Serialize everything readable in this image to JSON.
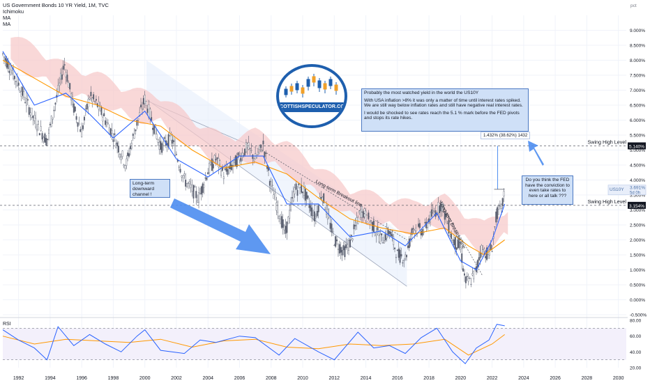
{
  "header": {
    "title": "US Government Bonds 10 YR Yield, 1M, TVC",
    "indicators": [
      "Ichimoku",
      "MA",
      "MA"
    ]
  },
  "annotations": {
    "note_title": "Probably the most watched yield in the world the US10Y",
    "note_p1": "With USA inflation >8% it was only a matter of time until interest rates spiked.  We are still way below inflation rates and still have negative real interest rates.",
    "note_p2": "I would be shocked to see rates reach the 5.1 % mark before the FED pivots and stops its rate hikes.",
    "channel_note": "Long-term downward channel !",
    "question_note": "Do you think the FED have the conviction to even take rates to here or all talk ???",
    "breakout_label": "Long-term Breakout line",
    "breakout_label_2": "Long-term Breakout line",
    "measure": "1.432% (38.62%) 1432",
    "logo_text": "SCOTTISHSPECULATOR.COM",
    "swing_high_1": "Swing High Level",
    "swing_high_2": "Swing High Level",
    "swing_high_1_value": "5.140%",
    "swing_high_2_value": "3.154%"
  },
  "colors": {
    "candle_up": "#26a69a",
    "candle_down": "#ef5350",
    "ma_fast": "#2962ff",
    "ma_slow": "#ff9800",
    "rsi_line": "#2962ff",
    "rsi_ma": "#ff9800",
    "cloud_bear": "#f7c7c7",
    "cloud_bull": "#c8e6c9",
    "note_bg": "#cfe0f7",
    "arrow": "#4c8df0",
    "price_label": "#4a6fa5"
  },
  "chart_data": [
    {
      "type": "line",
      "title": "US Government Bonds 10 YR Yield, 1M, TVC",
      "ylabel": "pct",
      "ylim": [
        -0.5,
        9.5
      ],
      "xlim": [
        1991,
        2030.5
      ],
      "x_ticks": [
        "1992",
        "1994",
        "1996",
        "1998",
        "2000",
        "2002",
        "2004",
        "2006",
        "2008",
        "2010",
        "2012",
        "2014",
        "2016",
        "2018",
        "2020",
        "2022",
        "2024",
        "2026",
        "2028",
        "2030"
      ],
      "y_ticks": [
        "9.000%",
        "8.500%",
        "8.000%",
        "7.500%",
        "7.000%",
        "6.500%",
        "6.000%",
        "5.500%",
        "5.000%",
        "4.500%",
        "4.000%",
        "3.500%",
        "3.000%",
        "2.500%",
        "2.000%",
        "1.500%",
        "1.000%",
        "0.500%",
        "0.000%",
        "-0.500%"
      ],
      "current": {
        "symbol": "US10Y",
        "value": "3.691%",
        "countdown": "5d 0h"
      },
      "swing_levels": [
        5.14,
        3.154
      ],
      "series": [
        {
          "name": "US10Y",
          "x": [
            1991.0,
            1992.0,
            1993.0,
            1993.8,
            1994.9,
            1995.5,
            1996.0,
            1996.5,
            1997.0,
            1998.0,
            1998.8,
            1999.5,
            2000.0,
            2001.0,
            2001.7,
            2002.5,
            2003.4,
            2004.0,
            2004.5,
            2005.0,
            2005.6,
            2006.5,
            2007.0,
            2007.5,
            2008.0,
            2008.9,
            2009.5,
            2010.0,
            2010.8,
            2011.2,
            2012.0,
            2012.6,
            2013.0,
            2013.7,
            2014.3,
            2015.0,
            2015.5,
            2016.0,
            2016.5,
            2017.0,
            2017.7,
            2018.0,
            2018.8,
            2019.5,
            2020.0,
            2020.3,
            2020.6,
            2021.0,
            2021.3,
            2021.8,
            2022.0,
            2022.3,
            2022.6,
            2022.8
          ],
          "y": [
            8.2,
            7.2,
            6.0,
            5.3,
            7.9,
            6.4,
            5.6,
            6.8,
            6.5,
            5.5,
            4.5,
            5.9,
            6.7,
            5.1,
            5.4,
            4.0,
            3.4,
            4.3,
            4.7,
            4.2,
            4.5,
            5.1,
            4.7,
            5.2,
            3.8,
            2.2,
            3.7,
            3.7,
            2.7,
            3.6,
            2.0,
            1.6,
            1.9,
            3.0,
            2.6,
            2.0,
            2.3,
            1.5,
            1.4,
            2.4,
            2.3,
            2.7,
            3.2,
            2.0,
            1.7,
            0.6,
            0.6,
            1.0,
            1.7,
            1.5,
            1.8,
            2.9,
            3.0,
            3.69
          ]
        },
        {
          "name": "MA (fast)",
          "x": [
            1991.0,
            1993.0,
            1995.0,
            1996.5,
            1998.0,
            2000.0,
            2002.0,
            2004.0,
            2006.0,
            2007.5,
            2009.0,
            2011.0,
            2013.0,
            2015.0,
            2016.5,
            2018.5,
            2020.0,
            2021.0,
            2022.0,
            2022.8
          ],
          "y": [
            8.3,
            6.5,
            6.9,
            6.2,
            5.4,
            6.3,
            4.7,
            4.1,
            4.8,
            4.8,
            3.2,
            3.2,
            2.1,
            2.3,
            1.8,
            2.9,
            1.3,
            1.0,
            2.0,
            3.2
          ]
        },
        {
          "name": "MA (slow)",
          "x": [
            1991.0,
            1993.0,
            1995.0,
            1997.0,
            1999.0,
            2001.0,
            2003.0,
            2005.0,
            2007.0,
            2009.0,
            2011.0,
            2013.0,
            2015.0,
            2017.0,
            2019.0,
            2020.5,
            2021.5,
            2022.8
          ],
          "y": [
            8.0,
            7.4,
            6.8,
            6.5,
            6.0,
            5.8,
            5.0,
            4.4,
            4.6,
            4.2,
            3.4,
            2.7,
            2.4,
            2.2,
            2.4,
            1.8,
            1.5,
            2.0
          ]
        }
      ]
    },
    {
      "type": "line",
      "title": "RSI",
      "ylim": [
        20,
        80
      ],
      "y_ticks": [
        "80.00",
        "60.00",
        "40.00",
        "20.00"
      ],
      "bands": [
        70,
        30
      ],
      "current": "73.00",
      "series": [
        {
          "name": "RSI",
          "x": [
            1991.0,
            1992.0,
            1993.0,
            1993.8,
            1994.5,
            1995.5,
            1996.5,
            1997.5,
            1998.5,
            1999.5,
            2000.0,
            2001.0,
            2002.5,
            2003.5,
            2004.5,
            2006.0,
            2007.0,
            2008.5,
            2009.5,
            2011.0,
            2012.0,
            2013.5,
            2014.5,
            2015.5,
            2016.5,
            2017.5,
            2018.5,
            2019.5,
            2020.3,
            2021.0,
            2021.8,
            2022.3,
            2022.8
          ],
          "y": [
            68,
            55,
            45,
            30,
            72,
            48,
            62,
            50,
            40,
            60,
            68,
            42,
            38,
            55,
            52,
            60,
            58,
            36,
            57,
            40,
            30,
            65,
            45,
            48,
            38,
            58,
            70,
            40,
            25,
            45,
            55,
            75,
            73
          ]
        },
        {
          "name": "RSI MA",
          "x": [
            1991.0,
            1993.0,
            1995.0,
            1997.0,
            1999.0,
            2001.0,
            2003.0,
            2005.0,
            2007.0,
            2009.0,
            2011.0,
            2013.0,
            2015.0,
            2017.0,
            2019.0,
            2020.5,
            2022.0,
            2022.8
          ],
          "y": [
            60,
            50,
            56,
            54,
            52,
            56,
            46,
            54,
            56,
            46,
            44,
            50,
            48,
            50,
            56,
            36,
            50,
            62
          ]
        }
      ]
    }
  ]
}
